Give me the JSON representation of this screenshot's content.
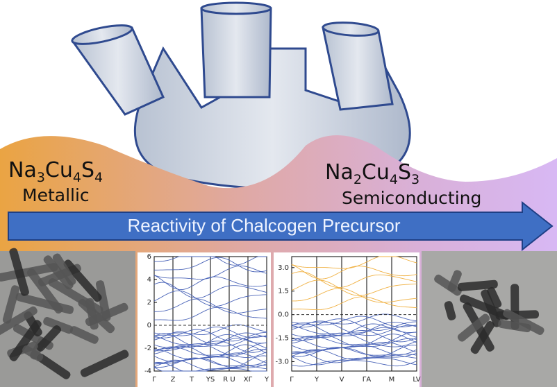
{
  "banner": {
    "left_formula": [
      "Na",
      "3",
      "Cu",
      "4",
      "S",
      "4"
    ],
    "left_label": "Metallic",
    "right_formula": [
      "Na",
      "2",
      "Cu",
      "4",
      "S",
      "3"
    ],
    "right_label": "Semiconducting",
    "arrow_text": "Reactivity of Chalcogen Precursor"
  },
  "band_plots": [
    {
      "ylim": [
        -4,
        6
      ],
      "yticks": [
        -4,
        -2,
        0,
        2,
        4,
        6
      ],
      "xlabels": [
        "Γ",
        "Z",
        "T",
        "YS",
        "R U",
        "XΓ",
        "Y"
      ]
    },
    {
      "ylim": [
        -3.6,
        3.7
      ],
      "yticks": [
        {
          "value": -3,
          "label": "-3.0"
        },
        {
          "value": -1.5,
          "label": "-1.5"
        },
        {
          "value": 0,
          "label": "0.0"
        },
        {
          "value": 1.5,
          "label": "1.5"
        },
        {
          "value": 3,
          "label": "3.0"
        }
      ],
      "xlabels": [
        "Γ",
        "Y",
        "V",
        "ΓA",
        "M",
        "LV"
      ]
    }
  ]
}
